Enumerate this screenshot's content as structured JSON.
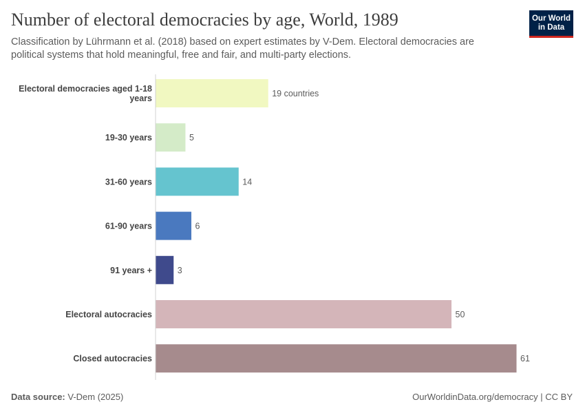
{
  "header": {
    "title": "Number of electoral democracies by age, World, 1989",
    "subtitle": "Classification by Lührmann et al. (2018) based on expert estimates by V-Dem. Electoral democracies are political systems that hold meaningful, free and fair, and multi-party elections.",
    "logo_line1": "Our World",
    "logo_line2": "in Data"
  },
  "footer": {
    "source_label": "Data source:",
    "source_value": "V-Dem (2025)",
    "link": "OurWorldinData.org/democracy | CC BY"
  },
  "chart_data": {
    "type": "bar",
    "orientation": "horizontal",
    "unit_suffix_first": " countries",
    "categories": [
      [
        "Electoral democracies aged 1-18",
        "years"
      ],
      [
        "19-30 years"
      ],
      [
        "31-60 years"
      ],
      [
        "61-90 years"
      ],
      [
        "91 years +"
      ],
      [
        "Electoral autocracies"
      ],
      [
        "Closed autocracies"
      ]
    ],
    "values": [
      19,
      5,
      14,
      6,
      3,
      50,
      61
    ],
    "value_labels": [
      "19 countries",
      "5",
      "14",
      "6",
      "3",
      "50",
      "61"
    ],
    "colors": [
      "#f1f8c1",
      "#d4ebc8",
      "#65c4cf",
      "#4a79bf",
      "#3f4a8c",
      "#d4b5b9",
      "#a68b8d"
    ],
    "xlim": [
      0,
      61
    ]
  }
}
